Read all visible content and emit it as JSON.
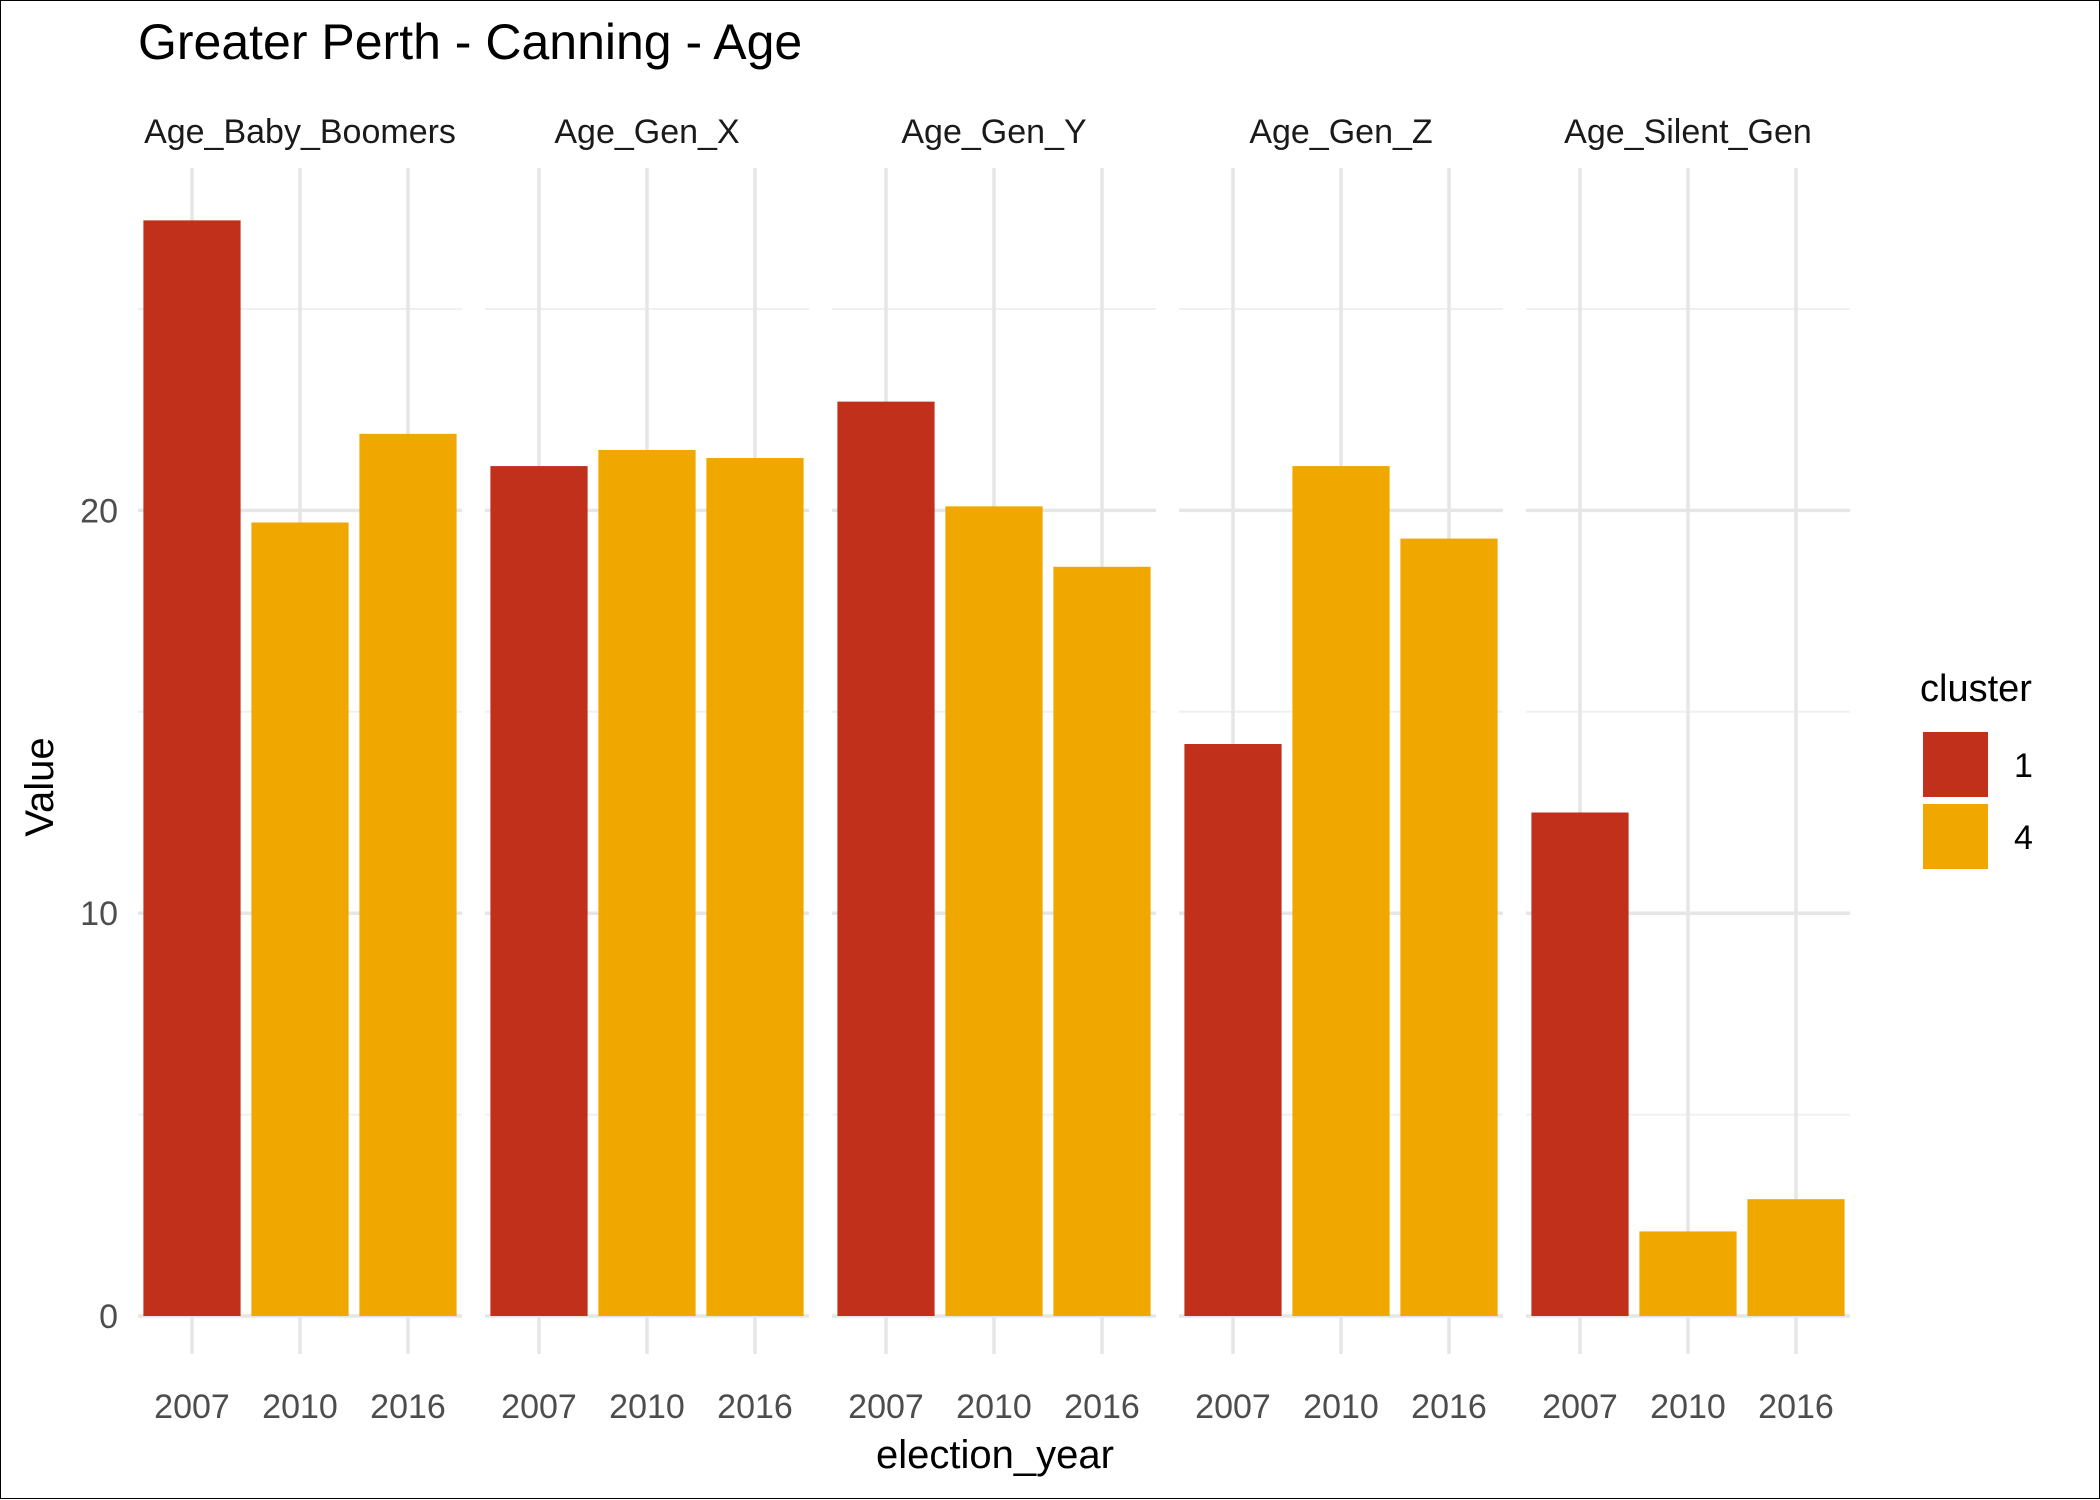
{
  "chart_data": {
    "type": "bar",
    "title": "Greater Perth - Canning - Age",
    "xlabel": "election_year",
    "ylabel": "Value",
    "ylim": [
      0,
      28.5
    ],
    "y_ticks": [
      0,
      10,
      20
    ],
    "y_minor_ticks": [
      5,
      15,
      25
    ],
    "grid": true,
    "legend": {
      "title": "cluster",
      "placement": "right",
      "entries": [
        {
          "label": "1",
          "color": "#C0301A"
        },
        {
          "label": "4",
          "color": "#F0A800"
        }
      ]
    },
    "categories": [
      "2007",
      "2010",
      "2016"
    ],
    "facets": [
      {
        "label": "Age_Baby_Boomers",
        "bars": [
          {
            "x": "2007",
            "value": 27.2,
            "cluster": "1"
          },
          {
            "x": "2010",
            "value": 19.7,
            "cluster": "4"
          },
          {
            "x": "2016",
            "value": 21.9,
            "cluster": "4"
          }
        ]
      },
      {
        "label": "Age_Gen_X",
        "bars": [
          {
            "x": "2007",
            "value": 21.1,
            "cluster": "1"
          },
          {
            "x": "2010",
            "value": 21.5,
            "cluster": "4"
          },
          {
            "x": "2016",
            "value": 21.3,
            "cluster": "4"
          }
        ]
      },
      {
        "label": "Age_Gen_Y",
        "bars": [
          {
            "x": "2007",
            "value": 22.7,
            "cluster": "1"
          },
          {
            "x": "2010",
            "value": 20.1,
            "cluster": "4"
          },
          {
            "x": "2016",
            "value": 18.6,
            "cluster": "4"
          }
        ]
      },
      {
        "label": "Age_Gen_Z",
        "bars": [
          {
            "x": "2007",
            "value": 14.2,
            "cluster": "1"
          },
          {
            "x": "2010",
            "value": 21.1,
            "cluster": "4"
          },
          {
            "x": "2016",
            "value": 19.3,
            "cluster": "4"
          }
        ]
      },
      {
        "label": "Age_Silent_Gen",
        "bars": [
          {
            "x": "2007",
            "value": 12.5,
            "cluster": "1"
          },
          {
            "x": "2010",
            "value": 2.1,
            "cluster": "4"
          },
          {
            "x": "2016",
            "value": 2.9,
            "cluster": "4"
          }
        ]
      }
    ]
  }
}
